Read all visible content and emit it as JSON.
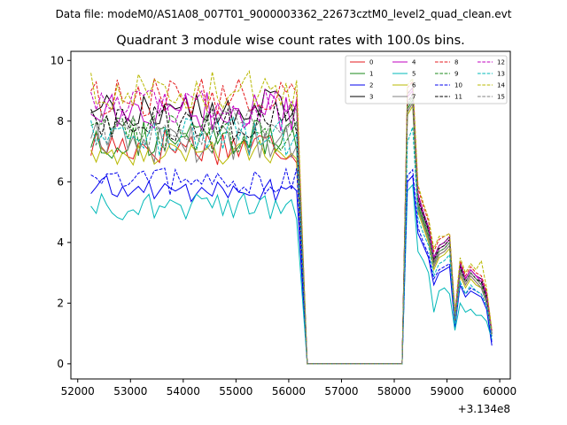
{
  "chart_data": {
    "type": "line",
    "suptitle": "Data file: modeM0/AS1A08_007T01_9000003362_22673cztM0_level2_quad_clean.evt",
    "title": "Quadrant 3 module wise count rates with 100.0s bins.",
    "xlabel": "",
    "ylabel": "",
    "x_offset_label": "+3.134e8",
    "xlim": [
      51870,
      60200
    ],
    "ylim": [
      -0.5,
      10.3
    ],
    "x_ticks": [
      52000,
      53000,
      54000,
      55000,
      56000,
      57000,
      58000,
      59000,
      60000
    ],
    "x_tick_labels": [
      "52000",
      "53000",
      "54000",
      "55000",
      "56000",
      "57000",
      "58000",
      "59000",
      "60000"
    ],
    "y_ticks": [
      0,
      2,
      4,
      6,
      8,
      10
    ],
    "y_tick_labels": [
      "0",
      "2",
      "4",
      "6",
      "8",
      "10"
    ],
    "grid": false,
    "legend_position": "top-right",
    "legend_columns": 4,
    "segments": {
      "active1": {
        "start": 52250,
        "step": 100,
        "count": 40
      },
      "gap": {
        "start": 56350,
        "end": 58150,
        "value": 0
      },
      "active2": [
        58250,
        58350,
        58450,
        58550,
        58650,
        58750,
        58850,
        58950,
        59050,
        59150,
        59250,
        59350,
        59450,
        59550,
        59650,
        59750,
        59850
      ]
    },
    "series": [
      {
        "name": "0",
        "color": "#e41a1c",
        "dash": "solid",
        "mean1": 7.2,
        "peak": 8.6,
        "tail": [
          8.3,
          6.6,
          5.1,
          4.6,
          4.1,
          3.2,
          3.6,
          3.7,
          3.9,
          1.4,
          3.0,
          2.6,
          2.9,
          2.7,
          2.5,
          2.0,
          1.0
        ]
      },
      {
        "name": "1",
        "color": "#1a8a1a",
        "dash": "solid",
        "mean1": 7.4,
        "peak": 8.7,
        "tail": [
          8.4,
          6.8,
          5.2,
          4.7,
          4.2,
          3.3,
          3.7,
          3.8,
          4.0,
          1.5,
          3.1,
          2.7,
          3.0,
          2.8,
          2.6,
          2.1,
          1.0
        ]
      },
      {
        "name": "2",
        "color": "#0000ee",
        "dash": "solid",
        "mean1": 5.75,
        "peak": 6.2,
        "tail": [
          6.0,
          5.3,
          4.3,
          3.9,
          3.5,
          2.6,
          3.0,
          3.1,
          3.2,
          1.2,
          2.6,
          2.2,
          2.4,
          2.3,
          2.2,
          1.8,
          0.6
        ]
      },
      {
        "name": "3",
        "color": "#000000",
        "dash": "solid",
        "mean1": 8.4,
        "peak": 9.1,
        "tail": [
          8.9,
          7.2,
          5.6,
          5.0,
          4.5,
          3.5,
          3.9,
          4.0,
          4.2,
          1.6,
          3.3,
          2.8,
          3.1,
          2.9,
          2.8,
          2.3,
          1.0
        ]
      },
      {
        "name": "4",
        "color": "#c000c0",
        "dash": "solid",
        "mean1": 8.3,
        "peak": 9.0,
        "tail": [
          8.8,
          7.1,
          5.5,
          4.9,
          4.4,
          3.4,
          3.8,
          3.9,
          4.1,
          1.6,
          3.2,
          2.8,
          3.1,
          2.9,
          2.7,
          2.2,
          1.0
        ]
      },
      {
        "name": "5",
        "color": "#00b8b8",
        "dash": "solid",
        "mean1": 5.2,
        "peak": 5.9,
        "tail": [
          5.7,
          4.7,
          3.7,
          3.4,
          3.0,
          1.7,
          2.4,
          2.5,
          2.3,
          1.1,
          2.0,
          1.7,
          1.8,
          1.6,
          1.6,
          1.4,
          0.8
        ]
      },
      {
        "name": "6",
        "color": "#b8b800",
        "dash": "solid",
        "mean1": 7.0,
        "peak": 8.5,
        "tail": [
          8.2,
          6.5,
          5.0,
          4.5,
          4.0,
          3.1,
          3.5,
          3.6,
          3.8,
          1.4,
          2.9,
          2.5,
          2.8,
          2.6,
          2.5,
          2.0,
          0.9
        ]
      },
      {
        "name": "7",
        "color": "#808080",
        "dash": "solid",
        "mean1": 7.3,
        "peak": 8.6,
        "tail": [
          8.3,
          6.7,
          5.1,
          4.6,
          4.1,
          3.2,
          3.6,
          3.7,
          3.9,
          1.5,
          3.0,
          2.6,
          2.9,
          2.7,
          2.5,
          2.0,
          0.9
        ]
      },
      {
        "name": "8",
        "color": "#e41a1c",
        "dash": "dashed",
        "mean1": 8.8,
        "peak": 9.3,
        "tail": [
          9.1,
          7.5,
          5.8,
          5.2,
          4.7,
          3.7,
          4.1,
          4.2,
          4.3,
          1.7,
          3.4,
          2.9,
          3.2,
          3.0,
          2.9,
          2.4,
          1.1
        ]
      },
      {
        "name": "9",
        "color": "#1a8a1a",
        "dash": "dashed",
        "mean1": 7.6,
        "peak": 8.8,
        "tail": [
          8.5,
          6.9,
          5.3,
          4.8,
          4.3,
          3.3,
          3.7,
          3.8,
          4.0,
          1.5,
          3.1,
          2.7,
          3.0,
          2.8,
          2.6,
          2.1,
          1.0
        ]
      },
      {
        "name": "10",
        "color": "#0000ee",
        "dash": "dashed",
        "mean1": 6.0,
        "peak": 6.4,
        "tail": [
          6.2,
          5.5,
          4.5,
          4.0,
          3.6,
          2.8,
          3.1,
          3.2,
          3.3,
          1.3,
          2.7,
          2.3,
          2.5,
          2.4,
          2.3,
          1.9,
          0.7
        ]
      },
      {
        "name": "11",
        "color": "#000000",
        "dash": "dashed",
        "mean1": 8.0,
        "peak": 8.9,
        "tail": [
          8.6,
          7.0,
          5.4,
          4.9,
          4.4,
          3.4,
          3.8,
          3.9,
          4.1,
          1.5,
          3.2,
          2.7,
          3.0,
          2.8,
          2.7,
          2.2,
          1.0
        ]
      },
      {
        "name": "12",
        "color": "#c000c0",
        "dash": "dashed",
        "mean1": 8.5,
        "peak": 9.1,
        "tail": [
          8.9,
          7.3,
          5.6,
          5.0,
          4.5,
          3.5,
          3.9,
          4.0,
          4.2,
          1.6,
          3.3,
          2.8,
          3.1,
          2.9,
          2.8,
          2.3,
          1.0
        ]
      },
      {
        "name": "13",
        "color": "#00b8b8",
        "dash": "dashed",
        "mean1": 7.5,
        "peak": 7.8,
        "tail": [
          7.3,
          6.2,
          4.8,
          4.3,
          3.9,
          2.9,
          3.3,
          3.4,
          3.6,
          1.3,
          2.7,
          2.3,
          2.6,
          2.4,
          2.3,
          1.9,
          0.9
        ]
      },
      {
        "name": "14",
        "color": "#b8b800",
        "dash": "dashed",
        "mean1": 9.0,
        "peak": 9.4,
        "tail": [
          9.2,
          7.6,
          5.9,
          5.3,
          4.8,
          3.8,
          4.2,
          4.2,
          4.3,
          1.7,
          3.5,
          3.0,
          3.3,
          3.1,
          3.4,
          2.5,
          1.1
        ]
      },
      {
        "name": "15",
        "color": "#808080",
        "dash": "dashed",
        "mean1": 7.8,
        "peak": 8.8,
        "tail": [
          8.5,
          6.9,
          5.3,
          4.8,
          4.3,
          3.3,
          3.7,
          3.8,
          4.0,
          1.5,
          3.1,
          2.7,
          3.0,
          2.8,
          2.6,
          2.1,
          1.0
        ]
      }
    ]
  }
}
